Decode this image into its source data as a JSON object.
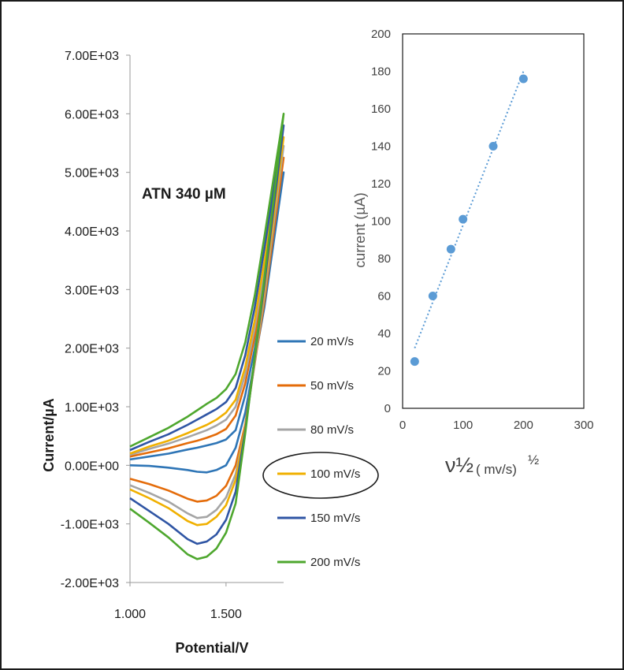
{
  "chart_data": [
    {
      "type": "line",
      "title": "",
      "annotation": "ATN   340 µM",
      "xlabel": "Potential/V",
      "ylabel": "Current/µA",
      "xlim": [
        1.0,
        1.8
      ],
      "ylim": [
        -2000,
        7000
      ],
      "x_ticks": [
        {
          "value": 1.0,
          "label": "1.000"
        },
        {
          "value": 1.5,
          "label": "1.500"
        }
      ],
      "y_ticks": [
        {
          "value": 7000,
          "label": "7.00E+03"
        },
        {
          "value": 6000,
          "label": "6.00E+03"
        },
        {
          "value": 5000,
          "label": "5.00E+03"
        },
        {
          "value": 4000,
          "label": "4.00E+03"
        },
        {
          "value": 3000,
          "label": "3.00E+03"
        },
        {
          "value": 2000,
          "label": "2.00E+03"
        },
        {
          "value": 1000,
          "label": "1.00E+03"
        },
        {
          "value": 0,
          "label": "0.00E+00"
        },
        {
          "value": -1000,
          "label": "-1.00E+03"
        },
        {
          "value": -2000,
          "label": "-2.00E+03"
        }
      ],
      "grid": false,
      "legend_position": "right",
      "highlighted_legend_entry": "100 mV/s",
      "series": [
        {
          "name": "20 mV/s",
          "color": "#2e75b6",
          "forward": [
            [
              1.0,
              100
            ],
            [
              1.1,
              150
            ],
            [
              1.2,
              200
            ],
            [
              1.3,
              270
            ],
            [
              1.35,
              300
            ],
            [
              1.4,
              340
            ],
            [
              1.45,
              380
            ],
            [
              1.5,
              440
            ],
            [
              1.55,
              600
            ],
            [
              1.6,
              1200
            ],
            [
              1.65,
              2000
            ],
            [
              1.7,
              3000
            ],
            [
              1.75,
              4000
            ],
            [
              1.8,
              5000
            ]
          ],
          "reverse": [
            [
              1.8,
              5000
            ],
            [
              1.7,
              2700
            ],
            [
              1.6,
              900
            ],
            [
              1.55,
              300
            ],
            [
              1.5,
              0
            ],
            [
              1.45,
              -80
            ],
            [
              1.4,
              -120
            ],
            [
              1.35,
              -110
            ],
            [
              1.3,
              -80
            ],
            [
              1.2,
              -40
            ],
            [
              1.1,
              -10
            ],
            [
              1.0,
              0
            ]
          ]
        },
        {
          "name": "50 mV/s",
          "color": "#e46c0a",
          "forward": [
            [
              1.0,
              150
            ],
            [
              1.1,
              220
            ],
            [
              1.2,
              290
            ],
            [
              1.3,
              380
            ],
            [
              1.35,
              420
            ],
            [
              1.4,
              470
            ],
            [
              1.45,
              530
            ],
            [
              1.5,
              620
            ],
            [
              1.55,
              850
            ],
            [
              1.6,
              1400
            ],
            [
              1.65,
              2200
            ],
            [
              1.7,
              3200
            ],
            [
              1.75,
              4200
            ],
            [
              1.8,
              5250
            ]
          ],
          "reverse": [
            [
              1.8,
              5250
            ],
            [
              1.7,
              2800
            ],
            [
              1.6,
              700
            ],
            [
              1.55,
              0
            ],
            [
              1.5,
              -350
            ],
            [
              1.45,
              -520
            ],
            [
              1.4,
              -600
            ],
            [
              1.35,
              -620
            ],
            [
              1.3,
              -570
            ],
            [
              1.2,
              -430
            ],
            [
              1.1,
              -320
            ],
            [
              1.0,
              -230
            ]
          ]
        },
        {
          "name": "80 mV/s",
          "color": "#a5a5a5",
          "forward": [
            [
              1.0,
              180
            ],
            [
              1.1,
              280
            ],
            [
              1.2,
              370
            ],
            [
              1.3,
              480
            ],
            [
              1.35,
              540
            ],
            [
              1.4,
              600
            ],
            [
              1.45,
              680
            ],
            [
              1.5,
              780
            ],
            [
              1.55,
              1000
            ],
            [
              1.6,
              1550
            ],
            [
              1.65,
              2350
            ],
            [
              1.7,
              3350
            ],
            [
              1.75,
              4400
            ],
            [
              1.8,
              5450
            ]
          ],
          "reverse": [
            [
              1.8,
              5450
            ],
            [
              1.7,
              2900
            ],
            [
              1.6,
              650
            ],
            [
              1.55,
              -150
            ],
            [
              1.5,
              -550
            ],
            [
              1.45,
              -760
            ],
            [
              1.4,
              -880
            ],
            [
              1.35,
              -900
            ],
            [
              1.3,
              -820
            ],
            [
              1.2,
              -620
            ],
            [
              1.1,
              -470
            ],
            [
              1.0,
              -340
            ]
          ]
        },
        {
          "name": "100 mV/s",
          "color": "#f0b000",
          "forward": [
            [
              1.0,
              200
            ],
            [
              1.1,
              320
            ],
            [
              1.2,
              420
            ],
            [
              1.3,
              550
            ],
            [
              1.35,
              620
            ],
            [
              1.4,
              690
            ],
            [
              1.45,
              780
            ],
            [
              1.5,
              900
            ],
            [
              1.55,
              1120
            ],
            [
              1.6,
              1680
            ],
            [
              1.65,
              2480
            ],
            [
              1.7,
              3480
            ],
            [
              1.75,
              4550
            ],
            [
              1.8,
              5600
            ]
          ],
          "reverse": [
            [
              1.8,
              5600
            ],
            [
              1.7,
              3000
            ],
            [
              1.6,
              650
            ],
            [
              1.55,
              -250
            ],
            [
              1.5,
              -680
            ],
            [
              1.45,
              -880
            ],
            [
              1.4,
              -1000
            ],
            [
              1.35,
              -1020
            ],
            [
              1.3,
              -950
            ],
            [
              1.2,
              -730
            ],
            [
              1.1,
              -560
            ],
            [
              1.0,
              -410
            ]
          ]
        },
        {
          "name": "150 mV/s",
          "color": "#2f55a4",
          "forward": [
            [
              1.0,
              260
            ],
            [
              1.1,
              400
            ],
            [
              1.2,
              530
            ],
            [
              1.3,
              690
            ],
            [
              1.35,
              780
            ],
            [
              1.4,
              870
            ],
            [
              1.45,
              960
            ],
            [
              1.5,
              1080
            ],
            [
              1.55,
              1320
            ],
            [
              1.6,
              1880
            ],
            [
              1.65,
              2700
            ],
            [
              1.7,
              3700
            ],
            [
              1.75,
              4750
            ],
            [
              1.8,
              5800
            ]
          ],
          "reverse": [
            [
              1.8,
              5800
            ],
            [
              1.7,
              3100
            ],
            [
              1.6,
              600
            ],
            [
              1.55,
              -450
            ],
            [
              1.5,
              -930
            ],
            [
              1.45,
              -1180
            ],
            [
              1.4,
              -1300
            ],
            [
              1.35,
              -1340
            ],
            [
              1.3,
              -1260
            ],
            [
              1.2,
              -1000
            ],
            [
              1.1,
              -780
            ],
            [
              1.0,
              -560
            ]
          ]
        },
        {
          "name": "200 mV/s",
          "color": "#4ea72e",
          "forward": [
            [
              1.0,
              320
            ],
            [
              1.1,
              480
            ],
            [
              1.2,
              640
            ],
            [
              1.3,
              830
            ],
            [
              1.35,
              940
            ],
            [
              1.4,
              1050
            ],
            [
              1.45,
              1150
            ],
            [
              1.5,
              1300
            ],
            [
              1.55,
              1560
            ],
            [
              1.6,
              2100
            ],
            [
              1.65,
              2900
            ],
            [
              1.7,
              3900
            ],
            [
              1.75,
              4950
            ],
            [
              1.8,
              6000
            ]
          ],
          "reverse": [
            [
              1.8,
              6000
            ],
            [
              1.7,
              3200
            ],
            [
              1.6,
              550
            ],
            [
              1.55,
              -650
            ],
            [
              1.5,
              -1150
            ],
            [
              1.45,
              -1420
            ],
            [
              1.4,
              -1560
            ],
            [
              1.35,
              -1600
            ],
            [
              1.3,
              -1520
            ],
            [
              1.2,
              -1230
            ],
            [
              1.1,
              -980
            ],
            [
              1.0,
              -740
            ]
          ]
        }
      ]
    },
    {
      "type": "scatter",
      "title": "",
      "xlabel": "ν½",
      "xlabel_unit": "( mv/s)",
      "xlabel_exponent": "½",
      "ylabel": "current (µA)",
      "xlim": [
        0,
        300
      ],
      "ylim": [
        0,
        200
      ],
      "x_ticks": [
        0,
        100,
        200,
        300
      ],
      "y_ticks": [
        0,
        20,
        40,
        60,
        80,
        100,
        120,
        140,
        160,
        180,
        200
      ],
      "grid": false,
      "trendline": "linear, dotted",
      "point_color": "#5b9bd5",
      "points": [
        [
          20,
          25
        ],
        [
          50,
          60
        ],
        [
          80,
          85
        ],
        [
          100,
          101
        ],
        [
          150,
          140
        ],
        [
          200,
          176
        ]
      ]
    }
  ]
}
